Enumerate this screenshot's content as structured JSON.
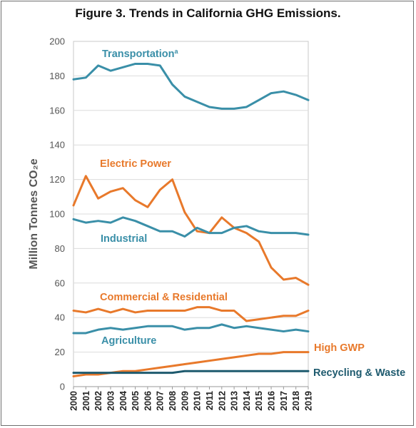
{
  "chart_data": {
    "type": "line",
    "title": "Figure 3. Trends in California GHG Emissions.",
    "ylabel": "Million Tonnes CO₂e",
    "xlabel": "",
    "ylim": [
      0,
      200
    ],
    "yticks": [
      0,
      20,
      40,
      60,
      80,
      100,
      120,
      140,
      160,
      180,
      200
    ],
    "x": [
      2000,
      2001,
      2002,
      2003,
      2004,
      2005,
      2006,
      2007,
      2008,
      2009,
      2010,
      2011,
      2012,
      2013,
      2014,
      2015,
      2016,
      2017,
      2018,
      2019
    ],
    "grid": "horizontal",
    "legend": "inline labels",
    "series": [
      {
        "name": "Transportation",
        "superscript": "a",
        "color": "#3a8fa8",
        "values": [
          178,
          179,
          186,
          183,
          185,
          187,
          187,
          186,
          175,
          168,
          165,
          162,
          161,
          161,
          162,
          166,
          170,
          171,
          169,
          166
        ]
      },
      {
        "name": "Electric Power",
        "color": "#e8792b",
        "values": [
          105,
          122,
          109,
          113,
          115,
          108,
          104,
          114,
          120,
          101,
          90,
          89,
          98,
          92,
          89,
          84,
          69,
          62,
          63,
          59
        ]
      },
      {
        "name": "Industrial",
        "color": "#3a8fa8",
        "values": [
          97,
          95,
          96,
          95,
          98,
          96,
          93,
          90,
          90,
          87,
          92,
          89,
          89,
          92,
          93,
          90,
          89,
          89,
          89,
          88
        ]
      },
      {
        "name": "Commercial & Residential",
        "color": "#e8792b",
        "values": [
          44,
          43,
          45,
          43,
          45,
          43,
          44,
          44,
          44,
          44,
          46,
          46,
          44,
          44,
          38,
          39,
          40,
          41,
          41,
          44
        ]
      },
      {
        "name": "Agriculture",
        "color": "#3a8fa8",
        "values": [
          31,
          31,
          33,
          34,
          33,
          34,
          35,
          35,
          35,
          33,
          34,
          34,
          36,
          34,
          35,
          34,
          33,
          32,
          33,
          32
        ]
      },
      {
        "name": "High GWP",
        "color": "#e8792b",
        "values": [
          6,
          7,
          7,
          8,
          9,
          9,
          10,
          11,
          12,
          13,
          14,
          15,
          16,
          17,
          18,
          19,
          19,
          20,
          20,
          20
        ]
      },
      {
        "name": "Recycling & Waste",
        "color": "#1e5a6e",
        "values": [
          8,
          8,
          8,
          8,
          8,
          8,
          8,
          8,
          8,
          9,
          9,
          9,
          9,
          9,
          9,
          9,
          9,
          9,
          9,
          9
        ]
      }
    ]
  }
}
